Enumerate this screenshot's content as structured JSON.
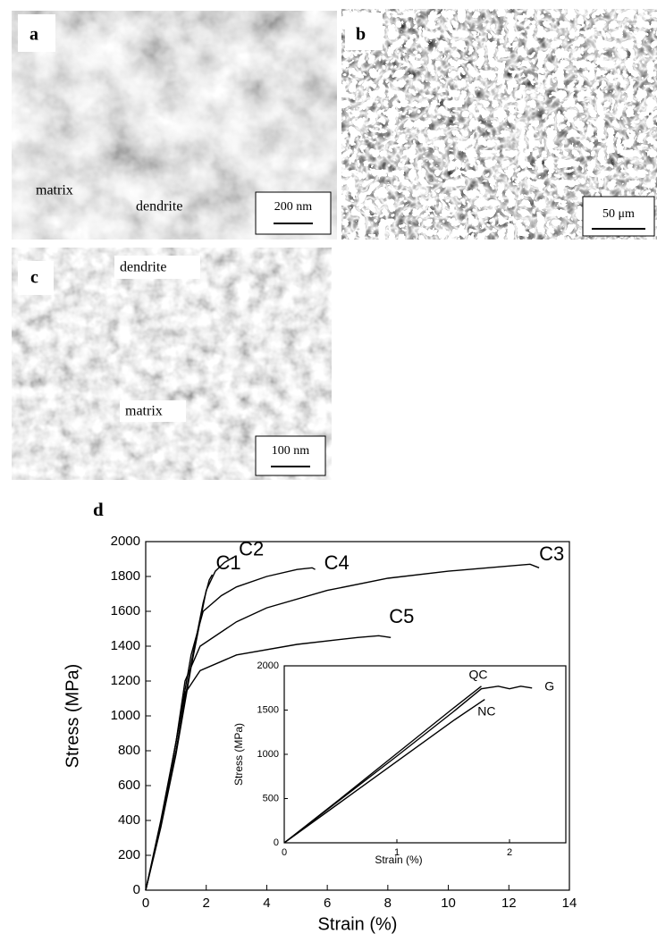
{
  "panels": [
    {
      "label": "a",
      "annotations": [
        "matrix",
        "dendrite"
      ],
      "scale_bar": "200 nm"
    },
    {
      "label": "b",
      "scale_bar": "50 μm"
    },
    {
      "label": "c",
      "annotations": [
        "dendrite",
        "matrix"
      ],
      "scale_bar": "100 nm"
    }
  ],
  "chart_label": "d",
  "chart_data": [
    {
      "type": "line",
      "x_label": "Strain (%)",
      "y_label": "Stress (MPa)",
      "xlim": [
        0,
        14
      ],
      "ylim": [
        0,
        2000
      ],
      "xticks": [
        0,
        2,
        4,
        6,
        8,
        10,
        12,
        14
      ],
      "yticks": [
        0,
        200,
        400,
        600,
        800,
        1000,
        1200,
        1400,
        1600,
        1800,
        2000
      ],
      "series": [
        {
          "name": "C1",
          "color": "#000000",
          "x": [
            0,
            0.5,
            1.0,
            1.5,
            1.9,
            2.1,
            2.2
          ],
          "values": [
            0,
            380,
            800,
            1300,
            1650,
            1780,
            1810
          ]
        },
        {
          "name": "C2",
          "color": "#000000",
          "x": [
            0,
            0.5,
            1.0,
            1.5,
            2.0,
            2.3,
            2.6,
            2.9
          ],
          "values": [
            0,
            360,
            780,
            1280,
            1720,
            1830,
            1880,
            1910
          ]
        },
        {
          "name": "C3",
          "color": "#000000",
          "x": [
            0,
            0.5,
            1.0,
            1.3,
            1.8,
            3,
            4,
            6,
            8,
            10,
            12,
            12.7,
            13.0
          ],
          "values": [
            0,
            380,
            850,
            1200,
            1400,
            1540,
            1620,
            1720,
            1790,
            1830,
            1860,
            1870,
            1850
          ]
        },
        {
          "name": "C4",
          "color": "#000000",
          "x": [
            0,
            0.5,
            1.0,
            1.5,
            1.9,
            2.5,
            3,
            4,
            5,
            5.5,
            5.6
          ],
          "values": [
            0,
            400,
            850,
            1350,
            1600,
            1690,
            1740,
            1800,
            1840,
            1850,
            1840
          ]
        },
        {
          "name": "C5",
          "color": "#000000",
          "x": [
            0,
            0.5,
            1.0,
            1.3,
            1.8,
            3,
            5,
            7,
            7.7,
            8.1
          ],
          "values": [
            0,
            370,
            850,
            1130,
            1260,
            1350,
            1410,
            1450,
            1460,
            1450
          ]
        }
      ]
    },
    {
      "type": "line",
      "x_label": "Strain (%)",
      "y_label": "Stress (MPa)",
      "xlim": [
        0,
        2.5
      ],
      "ylim": [
        0,
        2000
      ],
      "xticks": [
        0,
        1,
        2
      ],
      "yticks": [
        0,
        500,
        1000,
        1500,
        2000
      ],
      "series": [
        {
          "name": "QC",
          "color": "#000000",
          "x": [
            0,
            0.5,
            1.0,
            1.5,
            1.75
          ],
          "values": [
            0,
            500,
            1010,
            1520,
            1770
          ]
        },
        {
          "name": "G",
          "color": "#000000",
          "x": [
            0,
            0.5,
            1.0,
            1.5,
            1.75,
            1.9,
            2.0,
            2.1,
            2.2
          ],
          "values": [
            0,
            490,
            980,
            1480,
            1740,
            1770,
            1740,
            1770,
            1750
          ]
        },
        {
          "name": "NC",
          "color": "#000000",
          "x": [
            0,
            0.5,
            1.0,
            1.5,
            1.78
          ],
          "values": [
            0,
            460,
            920,
            1380,
            1620
          ]
        }
      ]
    }
  ]
}
